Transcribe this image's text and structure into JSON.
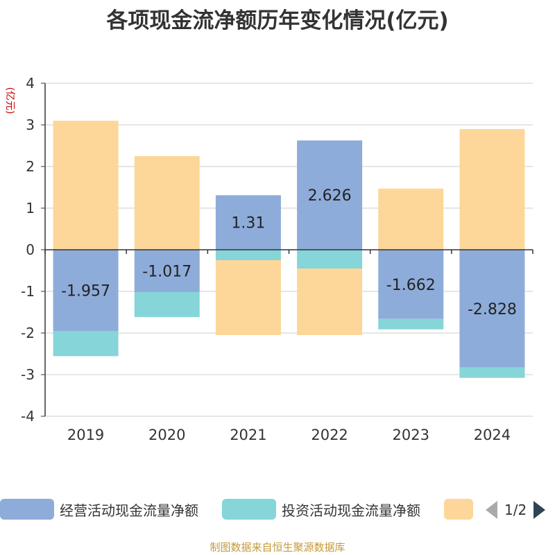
{
  "title": "各项现金流净额历年变化情况(亿元)",
  "source": "制图数据来自恒生聚源数据库",
  "legend": {
    "items": [
      {
        "label": "经营活动现金流量净额",
        "color": "#8eacd9"
      },
      {
        "label": "投资活动现金流量净额",
        "color": "#86d5d8"
      },
      {
        "label": "",
        "color": "#fdd799"
      }
    ],
    "page": "1/2"
  },
  "chart_data": {
    "type": "bar",
    "stacked": true,
    "ylabel": "(亿元)",
    "ylim": [
      -4,
      4
    ],
    "yticks": [
      4,
      3,
      2,
      1,
      0,
      -1,
      -2,
      -3,
      -4
    ],
    "grid": true,
    "categories": [
      "2019",
      "2020",
      "2021",
      "2022",
      "2023",
      "2024"
    ],
    "series": [
      {
        "name": "经营活动现金流量净额",
        "color": "#8eacd9",
        "values": [
          -1.957,
          -1.017,
          1.31,
          2.626,
          -1.662,
          -2.828
        ],
        "labels": [
          "-1.957",
          "-1.017",
          "1.31",
          "2.626",
          "-1.662",
          "-2.828"
        ]
      },
      {
        "name": "投资活动现金流量净额",
        "color": "#86d5d8",
        "values": [
          -0.6,
          -0.6,
          -0.25,
          -0.45,
          -0.25,
          -0.25
        ]
      },
      {
        "color": "#fdd799",
        "values": [
          3.1,
          2.25,
          -1.8,
          -1.6,
          1.47,
          2.9
        ]
      }
    ]
  }
}
